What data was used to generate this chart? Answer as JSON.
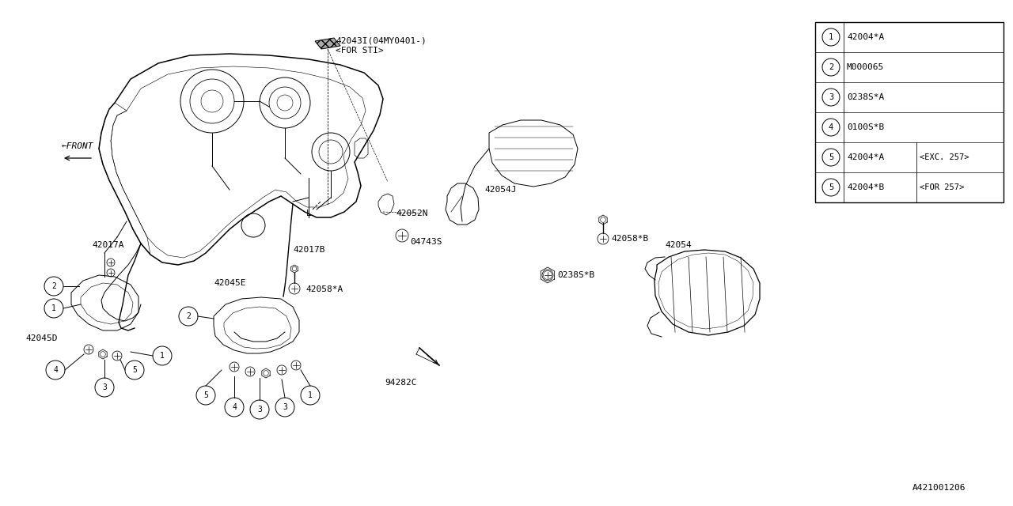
{
  "bg_color": "#ffffff",
  "line_color": "#000000",
  "legend_rows": [
    {
      "num": "1",
      "part": "42004*A",
      "note": ""
    },
    {
      "num": "2",
      "part": "M000065",
      "note": ""
    },
    {
      "num": "3",
      "part": "0238S*A",
      "note": ""
    },
    {
      "num": "4",
      "part": "0100S*B",
      "note": ""
    },
    {
      "num": "5",
      "part": "42004*A",
      "note": "<EXC. 257>"
    },
    {
      "num": "5",
      "part": "42004*B",
      "note": "<FOR 257>"
    }
  ],
  "footer": "A421001206",
  "font": "monospace",
  "lw": 0.7
}
